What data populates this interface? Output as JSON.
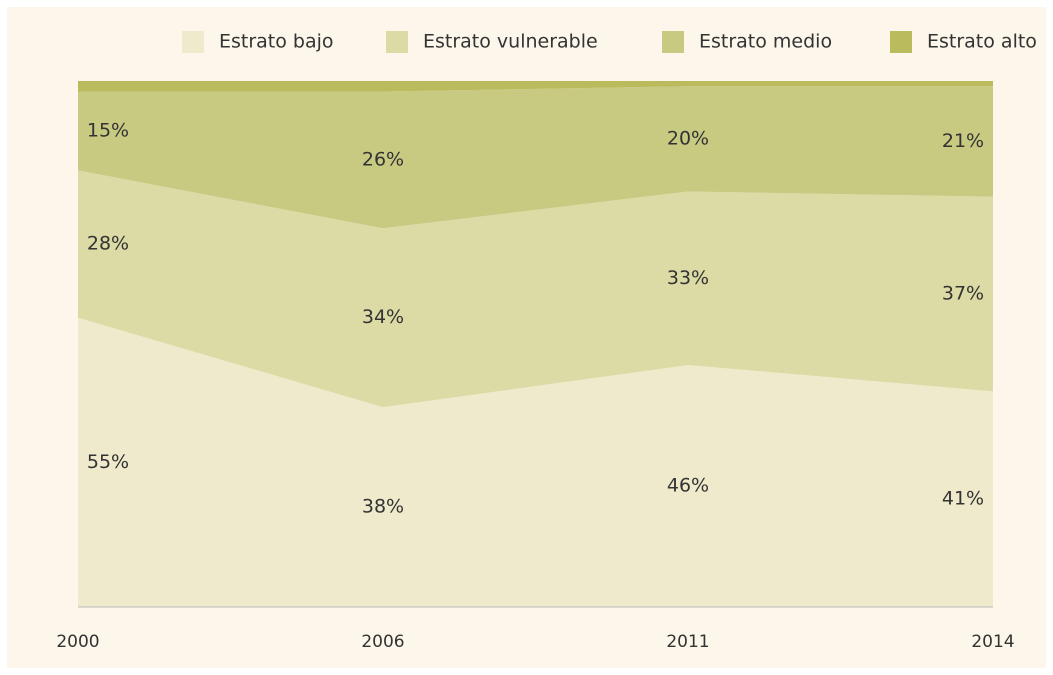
{
  "chart_data": {
    "type": "stacked_area",
    "categories": [
      "2000",
      "2006",
      "2011",
      "2014"
    ],
    "series": [
      {
        "name": "Estrato bajo",
        "color": "#eeeacb",
        "values": [
          55,
          38,
          46,
          41
        ],
        "value_labels": [
          "55%",
          "38%",
          "46%",
          "41%"
        ]
      },
      {
        "name": "Estrato vulnerable",
        "color": "#dcdba6",
        "values": [
          28,
          34,
          33,
          37
        ],
        "value_labels": [
          "28%",
          "34%",
          "33%",
          "37%"
        ]
      },
      {
        "name": "Estrato medio",
        "color": "#c9ca82",
        "values": [
          15,
          26,
          20,
          21
        ],
        "value_labels": [
          "15%",
          "26%",
          "20%",
          "21%"
        ]
      },
      {
        "name": "Estrato alto",
        "color": "#b9bb5c",
        "values": [
          2,
          2,
          1,
          1
        ]
      }
    ],
    "ylim": [
      0,
      100
    ]
  }
}
